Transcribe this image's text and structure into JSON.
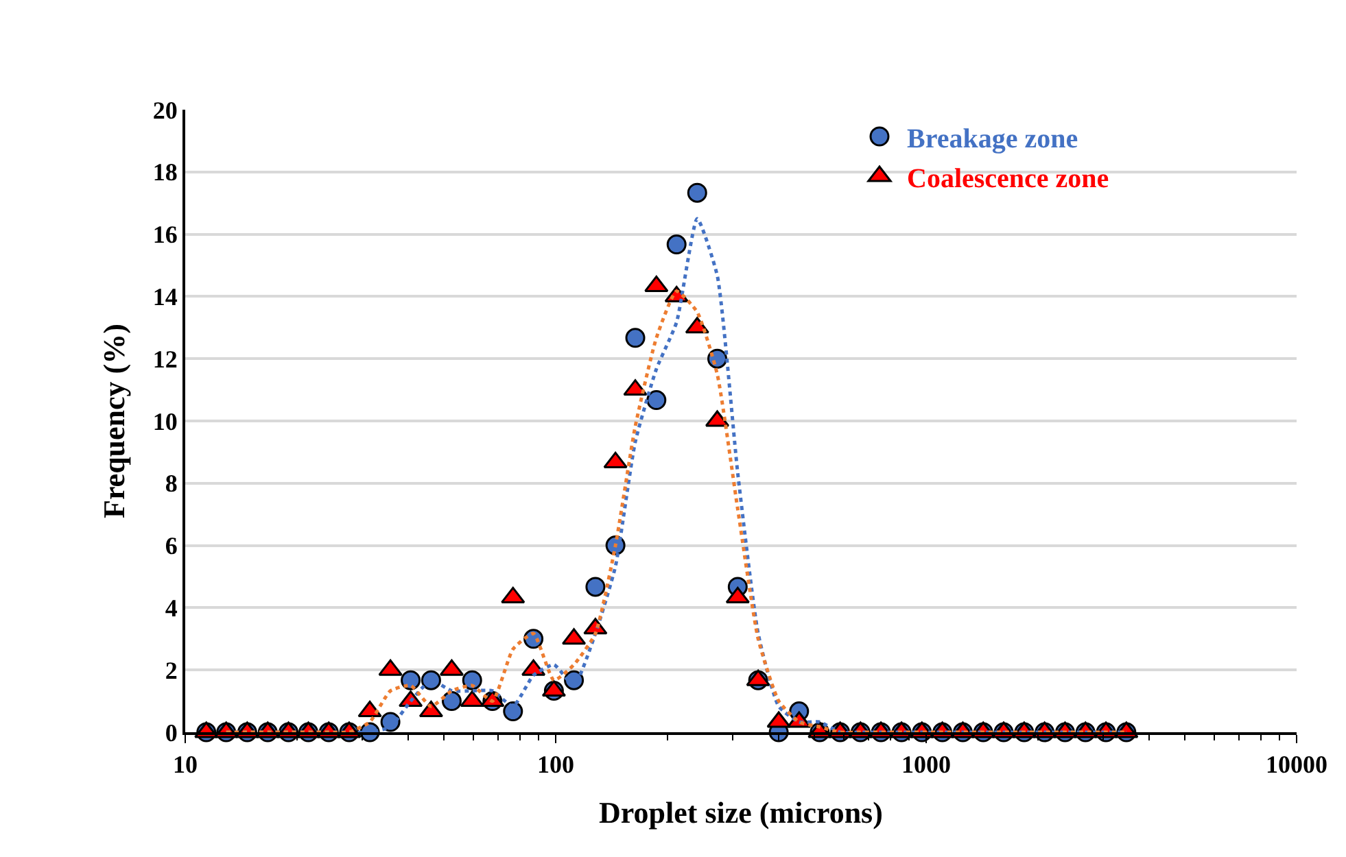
{
  "chart_data": {
    "type": "scatter",
    "xlabel": "Droplet size (microns)",
    "ylabel": "Frequency (%)",
    "log": "x",
    "grid": "y",
    "legend": "top right",
    "xlim": [
      10,
      10000
    ],
    "xticks": [
      10,
      100,
      1000,
      10000
    ],
    "ylim": [
      0,
      20
    ],
    "yticks": [
      0,
      2,
      4,
      6,
      8,
      10,
      12,
      14,
      16,
      18,
      20
    ],
    "x": [
      11.4,
      12.9,
      14.7,
      16.7,
      19.0,
      21.5,
      24.4,
      27.7,
      31.5,
      35.8,
      40.6,
      46.1,
      52.4,
      59.5,
      67.5,
      76.7,
      87.1,
      98.9,
      112,
      128,
      145,
      164,
      187,
      212,
      241,
      273,
      310,
      352,
      400,
      454,
      516,
      586,
      665,
      755,
      858,
      974,
      1106,
      1256,
      1426,
      1619,
      1839,
      2088,
      2371,
      2692,
      3057,
      3471
    ],
    "series": [
      {
        "name": "Breakage zone",
        "marker": "circle",
        "color": "#4472c4",
        "values": [
          0,
          0,
          0,
          0,
          0,
          0,
          0,
          0,
          0,
          0.33,
          1.67,
          1.67,
          1.0,
          1.67,
          1.0,
          0.67,
          3.0,
          1.33,
          1.67,
          4.67,
          6.0,
          12.67,
          10.67,
          15.67,
          17.33,
          12.0,
          4.67,
          1.67,
          0,
          0.67,
          0,
          0,
          0,
          0,
          0,
          0,
          0,
          0,
          0,
          0,
          0,
          0,
          0,
          0,
          0,
          0
        ]
      },
      {
        "name": "Coalescence zone",
        "marker": "triangle",
        "color": "#ff0000",
        "values": [
          0,
          0,
          0,
          0,
          0,
          0,
          0,
          0,
          0.67,
          2.0,
          1.0,
          0.67,
          2.0,
          1.0,
          1.0,
          4.33,
          2.0,
          1.33,
          3.0,
          3.33,
          8.67,
          11.0,
          14.33,
          14.0,
          13.0,
          10.0,
          4.33,
          1.67,
          0.33,
          0.33,
          0,
          0,
          0,
          0,
          0,
          0,
          0,
          0,
          0,
          0,
          0,
          0,
          0,
          0,
          0,
          0
        ]
      },
      {
        "type": "line",
        "line_style": "dotted",
        "color": "#4472c4",
        "x": [
          12.9,
          14.7,
          16.7,
          19.0,
          21.5,
          24.4,
          27.7,
          31.5,
          35.8,
          40.6,
          46.1,
          52.4,
          59.5,
          67.5,
          76.7,
          87.1,
          98.9,
          112,
          128,
          145,
          164,
          187,
          212,
          241,
          273,
          310,
          352,
          400,
          454,
          516,
          586,
          665,
          755,
          858,
          974,
          1106,
          1256,
          1426,
          1619,
          1839,
          2088,
          2371,
          2692,
          3057,
          3471
        ],
        "values": [
          0,
          0,
          0,
          0,
          0,
          0,
          0,
          0,
          0.17,
          1.0,
          1.67,
          1.33,
          1.33,
          1.33,
          0.83,
          1.83,
          2.17,
          1.5,
          3.17,
          5.33,
          9.33,
          11.67,
          13.17,
          16.5,
          14.67,
          8.33,
          3.17,
          0.83,
          0.33,
          0.33,
          0,
          0,
          0,
          0,
          0,
          0,
          0,
          0,
          0,
          0,
          0,
          0,
          0,
          0,
          0
        ]
      },
      {
        "type": "line",
        "line_style": "dotted",
        "color": "#ed7d31",
        "x": [
          12.9,
          14.7,
          16.7,
          19.0,
          21.5,
          24.4,
          27.7,
          31.5,
          35.8,
          40.6,
          46.1,
          52.4,
          59.5,
          67.5,
          76.7,
          87.1,
          98.9,
          112,
          128,
          145,
          164,
          187,
          212,
          241,
          273,
          310,
          352,
          400,
          454,
          516,
          586,
          665,
          755,
          858,
          974,
          1106,
          1256,
          1426,
          1619,
          1839,
          2088,
          2371,
          2692,
          3057,
          3471
        ],
        "values": [
          0,
          0,
          0,
          0,
          0,
          0,
          0,
          0.33,
          1.33,
          1.5,
          0.83,
          1.33,
          1.5,
          1.0,
          2.67,
          3.17,
          1.67,
          2.17,
          3.17,
          6.0,
          9.83,
          12.67,
          14.17,
          13.5,
          11.5,
          7.17,
          3.0,
          1.0,
          0.33,
          0.17,
          0,
          0,
          0,
          0,
          0,
          0,
          0,
          0,
          0,
          0,
          0,
          0,
          0,
          0,
          0
        ]
      }
    ]
  }
}
